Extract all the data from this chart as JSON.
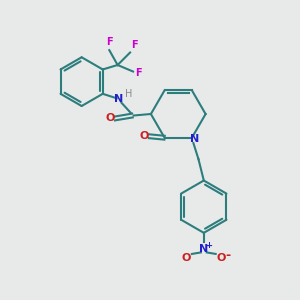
{
  "bg_color": "#e8eaea",
  "bond_color": "#2d7d7d",
  "N_color": "#2020cc",
  "O_color": "#cc2020",
  "F_color": "#cc00cc",
  "H_color": "#888888",
  "lw": 1.5,
  "fig_size": [
    3.0,
    3.0
  ],
  "dpi": 100,
  "xlim": [
    0,
    10
  ],
  "ylim": [
    0,
    10
  ]
}
